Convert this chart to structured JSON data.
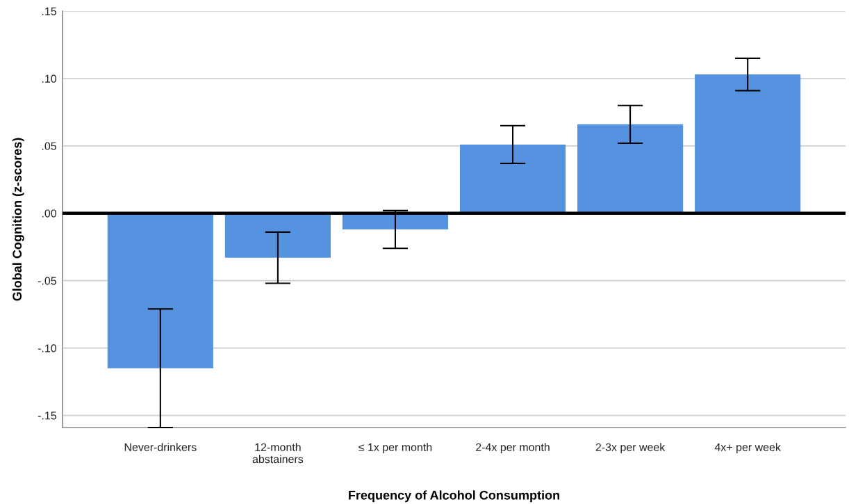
{
  "chart_data": {
    "type": "bar",
    "xlabel": "Frequency of Alcohol Consumption",
    "ylabel": "Global Cognition (z-scores)",
    "categories": [
      "Never-drinkers",
      "12-month\nabstainers",
      "≤ 1x per month",
      "2-4x per month",
      "2-3x per week",
      "4x+ per week"
    ],
    "values": [
      -0.115,
      -0.033,
      -0.012,
      0.051,
      0.066,
      0.103
    ],
    "errors": [
      0.044,
      0.019,
      0.014,
      0.014,
      0.014,
      0.012
    ],
    "color": "#5592e0",
    "ylim": [
      -0.159,
      0.15
    ],
    "yticks": [
      {
        "value": -0.15,
        "label": "-.15"
      },
      {
        "value": -0.1,
        "label": "-.10"
      },
      {
        "value": -0.05,
        "label": "-.05"
      },
      {
        "value": 0,
        "label": ".00"
      },
      {
        "value": 0.05,
        "label": ".05"
      },
      {
        "value": 0.1,
        "label": ".10"
      },
      {
        "value": 0.15,
        "label": ".15"
      }
    ],
    "grid": "y",
    "ref_lines": [
      {
        "axis": "y",
        "value": 0,
        "color": "#000000"
      }
    ]
  }
}
